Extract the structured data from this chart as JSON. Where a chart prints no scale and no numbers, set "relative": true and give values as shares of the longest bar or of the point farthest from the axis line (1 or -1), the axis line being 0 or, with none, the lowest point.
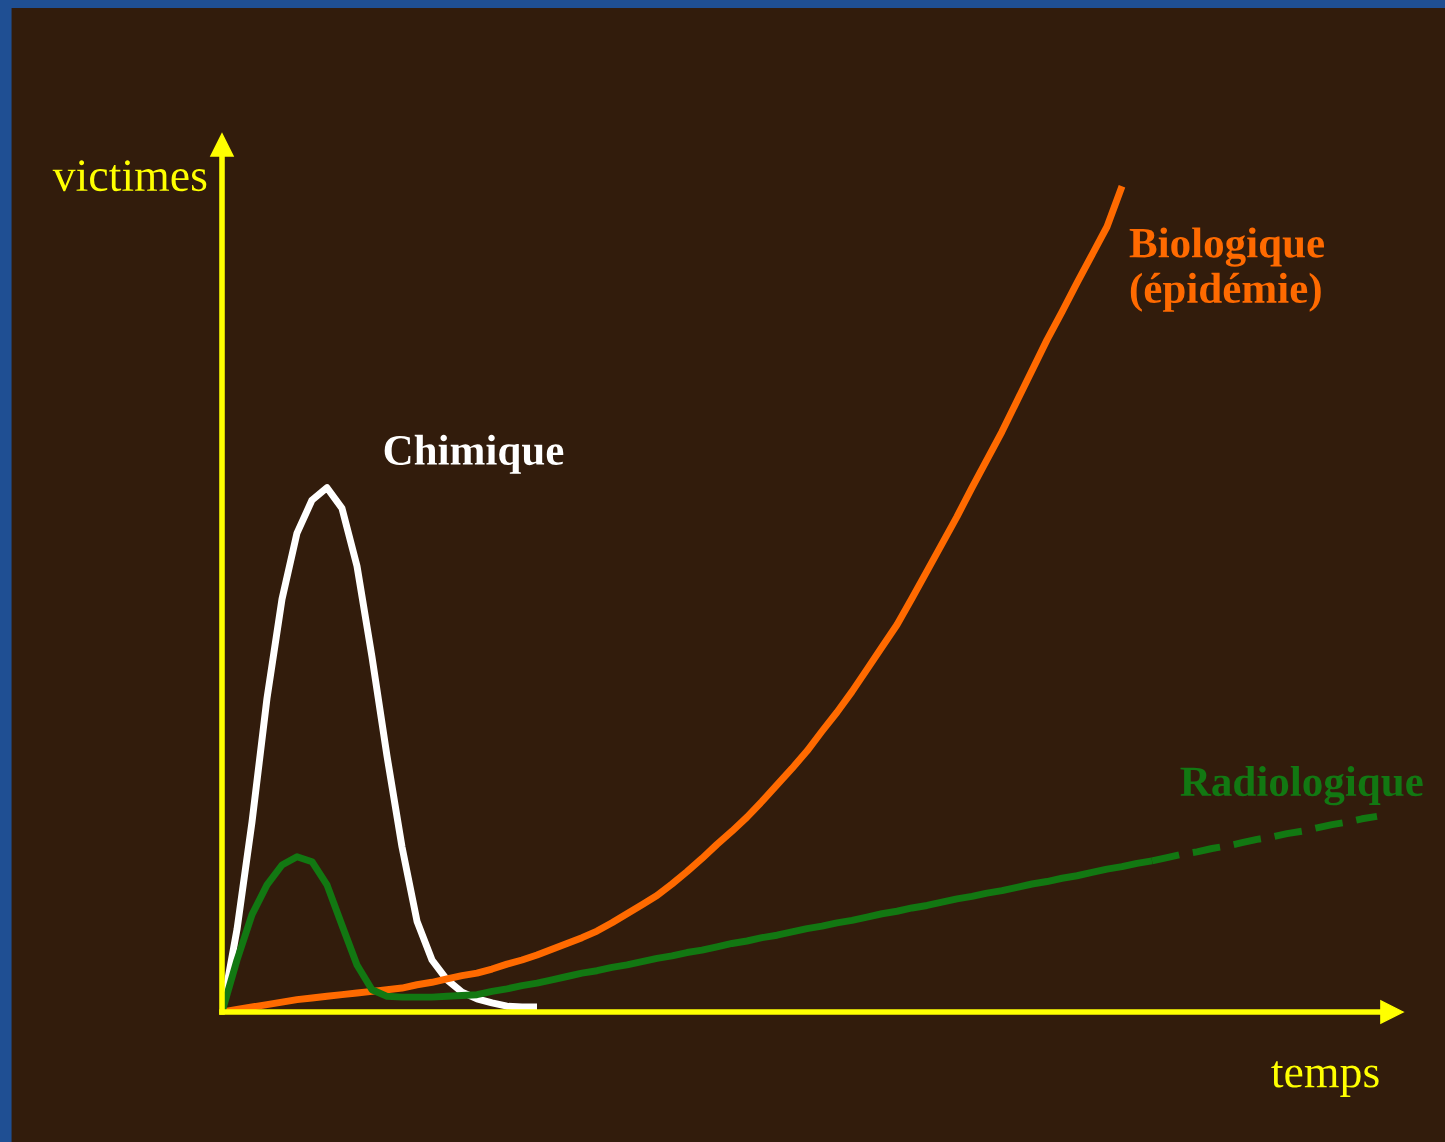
{
  "chart_data": {
    "type": "line",
    "relative": true,
    "xlabel": "temps",
    "ylabel": "victimes",
    "categories": [
      null,
      null,
      null,
      null,
      null,
      null,
      null,
      null,
      null,
      null,
      null,
      null,
      null,
      null,
      null,
      null,
      null,
      null,
      null,
      null,
      null,
      null,
      null,
      null,
      null,
      null,
      null,
      null,
      null,
      null,
      null,
      null,
      null,
      null,
      null,
      null,
      null,
      null,
      null,
      null,
      null,
      null,
      null,
      null,
      null,
      null,
      null,
      null,
      null,
      null,
      null,
      null,
      null,
      null,
      null,
      null,
      null,
      null,
      null,
      null,
      null,
      null,
      null,
      null,
      null,
      null,
      null,
      null,
      null,
      null,
      null,
      null,
      null,
      null,
      null,
      null,
      null,
      null,
      null
    ],
    "series": [
      {
        "name": "Chimique",
        "color": "#ffffff",
        "line_style": "solid",
        "values": [
          0,
          0.1,
          0.23,
          0.38,
          0.5,
          0.58,
          0.62,
          0.635,
          0.61,
          0.54,
          0.43,
          0.31,
          0.2,
          0.11,
          0.063,
          0.039,
          0.024,
          0.016,
          0.011,
          0.007,
          0.006,
          0.006,
          null,
          null,
          null,
          null,
          null,
          null,
          null,
          null,
          null,
          null,
          null,
          null,
          null,
          null,
          null,
          null,
          null,
          null,
          null,
          null,
          null,
          null,
          null,
          null,
          null,
          null,
          null,
          null,
          null,
          null,
          null,
          null,
          null,
          null,
          null,
          null,
          null,
          null,
          null,
          null,
          null,
          null,
          null,
          null,
          null,
          null,
          null,
          null,
          null,
          null,
          null,
          null,
          null,
          null,
          null,
          null,
          null
        ]
      },
      {
        "name": "Biologique\n(épidémie)",
        "color": "#ff6a00",
        "line_style": "solid",
        "values": [
          0,
          0.003,
          0.006,
          0.009,
          0.012,
          0.015,
          0.017,
          0.019,
          0.021,
          0.023,
          0.025,
          0.027,
          0.029,
          0.033,
          0.036,
          0.04,
          0.044,
          0.047,
          0.052,
          0.058,
          0.063,
          0.069,
          0.076,
          0.083,
          0.09,
          0.098,
          0.108,
          0.119,
          0.13,
          0.141,
          0.155,
          0.17,
          0.186,
          0.203,
          0.219,
          0.236,
          0.255,
          0.275,
          0.295,
          0.316,
          0.34,
          0.363,
          0.388,
          0.415,
          0.442,
          0.469,
          0.501,
          0.534,
          0.567,
          0.6,
          0.635,
          0.669,
          0.703,
          0.74,
          0.777,
          0.814,
          0.848,
          0.883,
          0.917,
          0.951,
          1.0,
          null,
          null,
          null,
          null,
          null,
          null,
          null,
          null,
          null,
          null,
          null,
          null,
          null,
          null,
          null,
          null,
          null,
          null
        ]
      },
      {
        "name": "Radiologique",
        "color": "#127812",
        "line_style": "solid",
        "values": [
          0,
          0.063,
          0.118,
          0.154,
          0.178,
          0.188,
          0.182,
          0.154,
          0.105,
          0.057,
          0.027,
          0.019,
          0.018,
          0.018,
          0.018,
          0.019,
          0.02,
          0.021,
          0.025,
          0.028,
          0.032,
          0.035,
          0.039,
          0.043,
          0.047,
          0.05,
          0.054,
          0.057,
          0.061,
          0.065,
          0.068,
          0.072,
          0.075,
          0.079,
          0.083,
          0.086,
          0.09,
          0.093,
          0.097,
          0.101,
          0.104,
          0.108,
          0.111,
          0.115,
          0.119,
          0.122,
          0.126,
          0.129,
          0.133,
          0.137,
          0.14,
          0.144,
          0.147,
          0.151,
          0.155,
          0.158,
          0.162,
          0.165,
          0.169,
          0.173,
          0.176,
          0.18,
          0.183,
          null,
          null,
          null,
          null,
          null,
          null,
          null,
          null,
          null,
          null,
          null,
          null,
          null,
          null,
          null,
          null
        ]
      },
      {
        "color": "#127812",
        "line_style": "dashed",
        "values": [
          null,
          null,
          null,
          null,
          null,
          null,
          null,
          null,
          null,
          null,
          null,
          null,
          null,
          null,
          null,
          null,
          null,
          null,
          null,
          null,
          null,
          null,
          null,
          null,
          null,
          null,
          null,
          null,
          null,
          null,
          null,
          null,
          null,
          null,
          null,
          null,
          null,
          null,
          null,
          null,
          null,
          null,
          null,
          null,
          null,
          null,
          null,
          null,
          null,
          null,
          null,
          null,
          null,
          null,
          null,
          null,
          null,
          null,
          null,
          null,
          null,
          null,
          0.183,
          0.187,
          0.191,
          0.194,
          0.198,
          0.201,
          0.205,
          0.209,
          0.212,
          0.216,
          0.219,
          0.223,
          0.227,
          0.23,
          0.234,
          0.237,
          null
        ]
      }
    ]
  }
}
